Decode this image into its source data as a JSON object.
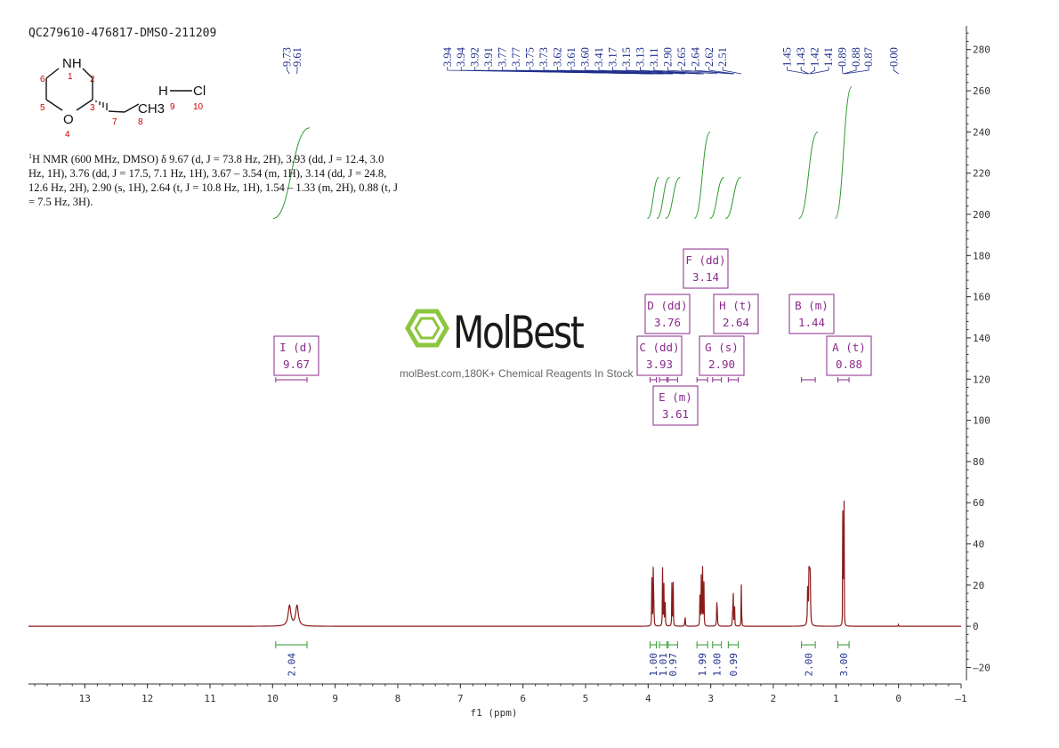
{
  "sample_id": "QC279610-476817-DMSO-211209",
  "nmr_description": {
    "nucleus_sup": "1",
    "text": "H NMR (600 MHz, DMSO) δ 9.67 (d, J = 73.8 Hz, 2H), 3.93 (dd, J = 12.4, 3.0 Hz, 1H), 3.76 (dd, J = 17.5, 7.1 Hz, 1H), 3.67 – 3.54 (m, 1H), 3.14 (dd, J = 24.8, 12.6 Hz, 2H), 2.90 (s, 1H), 2.64 (t, J = 10.8 Hz, 1H), 1.54 – 1.33 (m, 2H), 0.88 (t, J = 7.5 Hz, 3H)."
  },
  "watermark": {
    "brand": "MolBest",
    "url": "molBest.com,180K+ Chemical Reagents In Stock"
  },
  "molecule": {
    "atoms": {
      "nh": "NH",
      "o": "O",
      "ch3": "CH3",
      "h": "H",
      "cl": "Cl"
    },
    "numbers": [
      "1",
      "2",
      "3",
      "4",
      "5",
      "6",
      "7",
      "8",
      "9",
      "10"
    ]
  },
  "colors": {
    "spectrum": "#8b1a1a",
    "integral": "#2e9a2e",
    "peak_label": "#1f2f8c",
    "multiplet_box": "#8a2a8a",
    "atom_number": "#cc0000",
    "axis": "#333333"
  },
  "chart_data": {
    "type": "line",
    "xlabel": "f1 (ppm)",
    "x_reversed": true,
    "xlim": [
      13.9,
      -1
    ],
    "ylim": [
      -28,
      295
    ],
    "x_ticks": [
      13,
      12,
      11,
      10,
      9,
      8,
      7,
      6,
      5,
      4,
      3,
      2,
      1,
      0,
      -1
    ],
    "x_tick_labels": [
      "13",
      "12",
      "11",
      "10",
      "9",
      "8",
      "7",
      "6",
      "5",
      "4",
      "3",
      "2",
      "1",
      "0",
      "–1"
    ],
    "y_ticks": [
      -20,
      0,
      20,
      40,
      60,
      80,
      100,
      120,
      140,
      160,
      180,
      200,
      220,
      240,
      260,
      280
    ],
    "y_tick_labels": [
      "–20",
      "0",
      "20",
      "40",
      "60",
      "80",
      "100",
      "120",
      "140",
      "160",
      "180",
      "200",
      "220",
      "240",
      "260",
      "280"
    ],
    "peaks": [
      {
        "ppm": 9.73,
        "height": 10,
        "width": 0.05
      },
      {
        "ppm": 9.61,
        "height": 10,
        "width": 0.05
      },
      {
        "ppm": 3.94,
        "height": 24,
        "width": 0.006
      },
      {
        "ppm": 3.92,
        "height": 28,
        "width": 0.006
      },
      {
        "ppm": 3.91,
        "height": 20,
        "width": 0.006
      },
      {
        "ppm": 3.77,
        "height": 28,
        "width": 0.006
      },
      {
        "ppm": 3.75,
        "height": 24,
        "width": 0.006
      },
      {
        "ppm": 3.73,
        "height": 20,
        "width": 0.006
      },
      {
        "ppm": 3.62,
        "height": 22,
        "width": 0.006
      },
      {
        "ppm": 3.6,
        "height": 22,
        "width": 0.006
      },
      {
        "ppm": 3.41,
        "height": 6,
        "width": 0.008
      },
      {
        "ppm": 3.17,
        "height": 28,
        "width": 0.006
      },
      {
        "ppm": 3.15,
        "height": 30,
        "width": 0.006
      },
      {
        "ppm": 3.13,
        "height": 28,
        "width": 0.006
      },
      {
        "ppm": 3.11,
        "height": 24,
        "width": 0.006
      },
      {
        "ppm": 2.9,
        "height": 15,
        "width": 0.01
      },
      {
        "ppm": 2.65,
        "height": 13,
        "width": 0.006
      },
      {
        "ppm": 2.64,
        "height": 15,
        "width": 0.006
      },
      {
        "ppm": 2.62,
        "height": 12,
        "width": 0.006
      },
      {
        "ppm": 2.51,
        "height": 30,
        "width": 0.005
      },
      {
        "ppm": 1.45,
        "height": 22,
        "width": 0.01
      },
      {
        "ppm": 1.43,
        "height": 24,
        "width": 0.01
      },
      {
        "ppm": 1.42,
        "height": 24,
        "width": 0.01
      },
      {
        "ppm": 1.41,
        "height": 21,
        "width": 0.01
      },
      {
        "ppm": 0.89,
        "height": 65,
        "width": 0.004
      },
      {
        "ppm": 0.88,
        "height": 72,
        "width": 0.004
      },
      {
        "ppm": 0.87,
        "height": 60,
        "width": 0.004
      },
      {
        "ppm": 0.0,
        "height": 2,
        "width": 0.004
      }
    ],
    "peak_labels": {
      "groups": [
        {
          "values": [
            "9.73",
            "9.61"
          ],
          "ppm": [
            9.73,
            9.61
          ],
          "label_x": [
            9.71,
            9.55
          ]
        },
        {
          "values": [
            "3.94",
            "3.94",
            "3.92",
            "3.91",
            "3.77",
            "3.77",
            "3.75",
            "3.73",
            "3.62",
            "3.61",
            "3.60",
            "3.41",
            "3.17",
            "3.15",
            "3.13",
            "3.11",
            "2.90",
            "2.65",
            "2.64",
            "2.62",
            "2.51"
          ],
          "ppm": [
            3.94,
            3.94,
            3.92,
            3.91,
            3.77,
            3.77,
            3.75,
            3.73,
            3.62,
            3.61,
            3.6,
            3.41,
            3.17,
            3.15,
            3.13,
            3.11,
            2.9,
            2.65,
            2.64,
            2.62,
            2.51
          ],
          "label_x": [
            7.15,
            6.93,
            6.71,
            6.49,
            6.27,
            6.05,
            5.83,
            5.61,
            5.39,
            5.17,
            4.95,
            4.73,
            4.51,
            4.29,
            4.07,
            3.85,
            3.63,
            3.41,
            3.19,
            2.97,
            2.75
          ]
        },
        {
          "values": [
            "1.45",
            "1.43",
            "1.42",
            "1.41",
            "0.89",
            "0.88",
            "0.87",
            "0.00"
          ],
          "ppm": [
            1.45,
            1.43,
            1.42,
            1.41,
            0.89,
            0.88,
            0.87,
            0.0
          ],
          "label_x": [
            1.72,
            1.5,
            1.28,
            1.06,
            0.84,
            0.62,
            0.42,
            0.02
          ]
        }
      ]
    },
    "integrals": [
      {
        "value": "2.04",
        "from": 9.95,
        "to": 9.45,
        "curve_start": 198,
        "curve_end": 242
      },
      {
        "value": "1.00",
        "from": 3.97,
        "to": 3.87,
        "curve_start": 198,
        "curve_end": 218
      },
      {
        "value": "1.01",
        "from": 3.82,
        "to": 3.7,
        "curve_start": 198,
        "curve_end": 218
      },
      {
        "value": "0.97",
        "from": 3.68,
        "to": 3.53,
        "curve_start": 198,
        "curve_end": 218
      },
      {
        "value": "1.99",
        "from": 3.22,
        "to": 3.05,
        "curve_start": 198,
        "curve_end": 240
      },
      {
        "value": "1.00",
        "from": 2.97,
        "to": 2.83,
        "curve_start": 198,
        "curve_end": 218
      },
      {
        "value": "0.99",
        "from": 2.72,
        "to": 2.56,
        "curve_start": 198,
        "curve_end": 218
      },
      {
        "value": "2.00",
        "from": 1.55,
        "to": 1.33,
        "curve_start": 198,
        "curve_end": 240
      },
      {
        "value": "3.00",
        "from": 0.97,
        "to": 0.79,
        "curve_start": 198,
        "curve_end": 262
      }
    ],
    "multiplets": [
      {
        "letter": "I",
        "mult": "(d)",
        "shift": "9.67",
        "from": 9.95,
        "to": 9.45
      },
      {
        "letter": "C",
        "mult": "(dd)",
        "shift": "3.93",
        "from": 3.97,
        "to": 3.87
      },
      {
        "letter": "D",
        "mult": "(dd)",
        "shift": "3.76",
        "from": 3.82,
        "to": 3.7
      },
      {
        "letter": "E",
        "mult": "(m)",
        "shift": "3.61",
        "from": 3.68,
        "to": 3.53
      },
      {
        "letter": "F",
        "mult": "(dd)",
        "shift": "3.14",
        "from": 3.22,
        "to": 3.05
      },
      {
        "letter": "G",
        "mult": "(s)",
        "shift": "2.90",
        "from": 2.97,
        "to": 2.83
      },
      {
        "letter": "H",
        "mult": "(t)",
        "shift": "2.64",
        "from": 2.72,
        "to": 2.56
      },
      {
        "letter": "B",
        "mult": "(m)",
        "shift": "1.44",
        "from": 1.55,
        "to": 1.33
      },
      {
        "letter": "A",
        "mult": "(t)",
        "shift": "0.88",
        "from": 0.97,
        "to": 0.79
      }
    ]
  }
}
